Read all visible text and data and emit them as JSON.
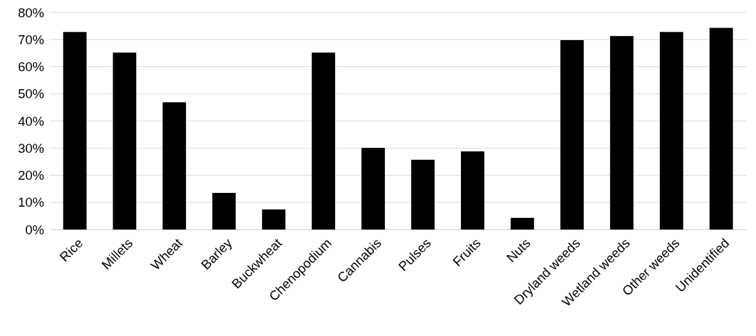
{
  "chart_data": {
    "type": "bar",
    "categories": [
      "Rice",
      "Millets",
      "Wheat",
      "Barley",
      "Buckwheat",
      "Chenopodium",
      "Cannabis",
      "Pulses",
      "Fruits",
      "Nuts",
      "Dryland weeds",
      "Wetland weeds",
      "Other weeds",
      "Unidentified"
    ],
    "values": [
      72.8,
      65.2,
      46.9,
      13.5,
      7.4,
      65.2,
      30.1,
      25.7,
      28.8,
      4.3,
      69.8,
      71.3,
      72.8,
      74.3
    ],
    "color": "#000000",
    "ylim": [
      0,
      80
    ],
    "yticks": [
      {
        "value": 0,
        "label": "0%"
      },
      {
        "value": 10,
        "label": "10%"
      },
      {
        "value": 20,
        "label": "20%"
      },
      {
        "value": 30,
        "label": "30%"
      },
      {
        "value": 40,
        "label": "40%"
      },
      {
        "value": 50,
        "label": "50%"
      },
      {
        "value": 60,
        "label": "60%"
      },
      {
        "value": 70,
        "label": "70%"
      },
      {
        "value": 80,
        "label": "80%"
      }
    ],
    "grid": "y"
  }
}
